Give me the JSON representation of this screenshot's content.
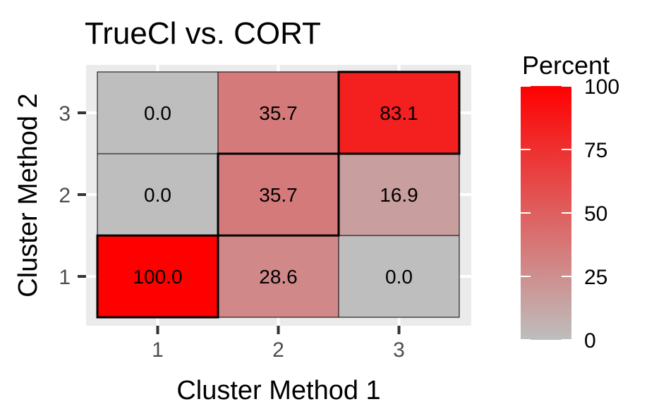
{
  "chart_data": {
    "type": "heatmap",
    "title": "TrueCl vs. CORT",
    "xlabel": "Cluster Method 1",
    "ylabel": "Cluster Method 2",
    "x_categories": [
      "1",
      "2",
      "3"
    ],
    "y_categories": [
      "1",
      "2",
      "3"
    ],
    "cells": [
      {
        "x": "1",
        "y": "1",
        "value": 100.0,
        "label": "100.0",
        "highlight": true
      },
      {
        "x": "2",
        "y": "1",
        "value": 28.6,
        "label": "28.6",
        "highlight": false
      },
      {
        "x": "3",
        "y": "1",
        "value": 0.0,
        "label": "0.0",
        "highlight": false
      },
      {
        "x": "1",
        "y": "2",
        "value": 0.0,
        "label": "0.0",
        "highlight": false
      },
      {
        "x": "2",
        "y": "2",
        "value": 35.7,
        "label": "35.7",
        "highlight": true
      },
      {
        "x": "3",
        "y": "2",
        "value": 16.9,
        "label": "16.9",
        "highlight": false
      },
      {
        "x": "1",
        "y": "3",
        "value": 0.0,
        "label": "0.0",
        "highlight": false
      },
      {
        "x": "2",
        "y": "3",
        "value": 35.7,
        "label": "35.7",
        "highlight": false
      },
      {
        "x": "3",
        "y": "3",
        "value": 83.1,
        "label": "83.1",
        "highlight": true
      }
    ],
    "legend": {
      "title": "Percent",
      "ticks": [
        0,
        25,
        50,
        75,
        100
      ],
      "tick_labels": [
        "0",
        "25",
        "50",
        "75",
        "100"
      ],
      "range": [
        0,
        100
      ],
      "low_color": "#bebebe",
      "high_color": "#ff0000",
      "position": "right"
    },
    "panel_background": "#ebebeb",
    "grid": true
  }
}
